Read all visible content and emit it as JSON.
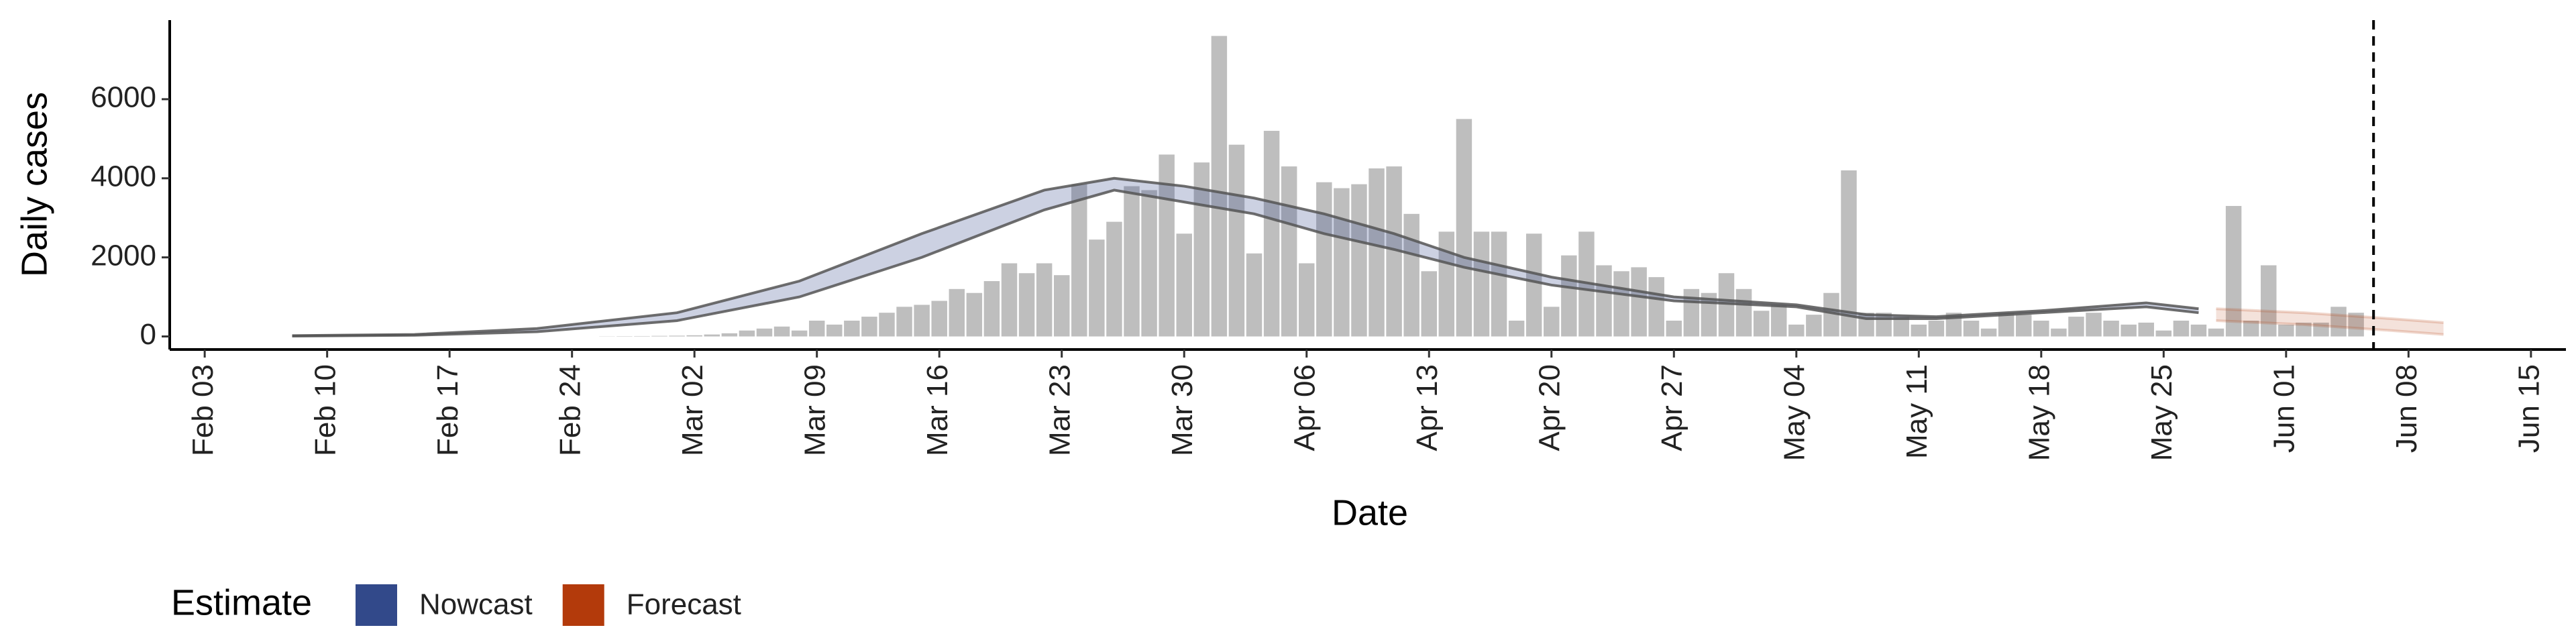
{
  "chart_data": {
    "type": "bar",
    "x_label": "Date",
    "y_label": "Daily cases",
    "color": "#bebebe",
    "x": [
      "Feb 26",
      "Feb 27",
      "Feb 28",
      "Feb 29",
      "Mar 01",
      "Mar 02",
      "Mar 03",
      "Mar 04",
      "Mar 05",
      "Mar 06",
      "Mar 07",
      "Mar 08",
      "Mar 09",
      "Mar 10",
      "Mar 11",
      "Mar 12",
      "Mar 13",
      "Mar 14",
      "Mar 15",
      "Mar 16",
      "Mar 17",
      "Mar 18",
      "Mar 19",
      "Mar 20",
      "Mar 21",
      "Mar 22",
      "Mar 23",
      "Mar 24",
      "Mar 25",
      "Mar 26",
      "Mar 27",
      "Mar 28",
      "Mar 29",
      "Mar 30",
      "Mar 31",
      "Apr 01",
      "Apr 02",
      "Apr 03",
      "Apr 04",
      "Apr 05",
      "Apr 06",
      "Apr 07",
      "Apr 08",
      "Apr 09",
      "Apr 10",
      "Apr 11",
      "Apr 12",
      "Apr 13",
      "Apr 14",
      "Apr 15",
      "Apr 16",
      "Apr 17",
      "Apr 18",
      "Apr 19",
      "Apr 20",
      "Apr 21",
      "Apr 22",
      "Apr 23",
      "Apr 24",
      "Apr 25",
      "Apr 26",
      "Apr 27",
      "Apr 28",
      "Apr 29",
      "Apr 30",
      "May 01",
      "May 02",
      "May 03",
      "May 04",
      "May 05",
      "May 06",
      "May 07",
      "May 08",
      "May 09",
      "May 10",
      "May 11",
      "May 12",
      "May 13",
      "May 14",
      "May 15",
      "May 16",
      "May 17",
      "May 18",
      "May 19",
      "May 20",
      "May 21",
      "May 22",
      "May 23",
      "May 24",
      "May 25",
      "May 26",
      "May 27",
      "May 28",
      "May 29",
      "May 30",
      "May 31",
      "Jun 01",
      "Jun 02",
      "Jun 03",
      "Jun 04",
      "Jun 05"
    ],
    "values": [
      5,
      8,
      10,
      15,
      20,
      30,
      50,
      80,
      150,
      200,
      250,
      150,
      400,
      300,
      400,
      500,
      600,
      750,
      800,
      900,
      1200,
      1100,
      1400,
      1850,
      1600,
      1850,
      1550,
      3850,
      2450,
      2900,
      3800,
      3700,
      4600,
      2600,
      4400,
      7600,
      4850,
      2100,
      5200,
      4300,
      1850,
      3900,
      3750,
      3850,
      4250,
      4300,
      3100,
      1650,
      2650,
      5500,
      2650,
      2650,
      400,
      2600,
      750,
      2050,
      2650,
      1800,
      1650,
      1750,
      1500,
      400,
      1200,
      1100,
      1600,
      1200,
      650,
      800,
      300,
      550,
      1100,
      4200,
      600,
      600,
      500,
      300,
      400,
      600,
      400,
      200,
      600,
      550,
      400,
      200,
      500,
      600,
      400,
      300,
      350,
      150,
      400,
      300,
      200,
      3300,
      400,
      1800,
      300,
      350,
      350,
      750,
      600
    ],
    "bands": [
      {
        "name": "Nowcast",
        "color": "#32498a",
        "x": [
          "Feb 08",
          "Feb 15",
          "Feb 22",
          "Mar 01",
          "Mar 08",
          "Mar 15",
          "Mar 22",
          "Mar 26",
          "Mar 30",
          "Apr 03",
          "Apr 07",
          "Apr 11",
          "Apr 15",
          "Apr 20",
          "Apr 27",
          "May 04",
          "May 08",
          "May 12",
          "May 18",
          "May 24",
          "May 27"
        ],
        "upper": [
          20,
          50,
          200,
          600,
          1400,
          2600,
          3700,
          4000,
          3800,
          3500,
          3100,
          2600,
          2000,
          1500,
          1000,
          800,
          550,
          500,
          650,
          850,
          700
        ],
        "lower": [
          10,
          30,
          120,
          400,
          1000,
          2000,
          3200,
          3700,
          3400,
          3100,
          2600,
          2200,
          1750,
          1300,
          900,
          750,
          450,
          450,
          600,
          750,
          600
        ]
      },
      {
        "name": "Forecast",
        "color": "#b33a0b",
        "x": [
          "May 28",
          "Jun 02",
          "Jun 07",
          "Jun 10"
        ],
        "upper": [
          700,
          600,
          450,
          350
        ],
        "lower": [
          400,
          300,
          150,
          50
        ]
      }
    ],
    "legend_title": "Estimate",
    "vline": "Jun 06",
    "xlim": [
      "Feb 01",
      "Jun 17"
    ],
    "xticks": [
      "Feb 03",
      "Feb 10",
      "Feb 17",
      "Feb 24",
      "Mar 02",
      "Mar 09",
      "Mar 16",
      "Mar 23",
      "Mar 30",
      "Apr 06",
      "Apr 13",
      "Apr 20",
      "Apr 27",
      "May 04",
      "May 11",
      "May 18",
      "May 25",
      "Jun 01",
      "Jun 08",
      "Jun 15"
    ],
    "ylim": [
      -330,
      8000
    ],
    "yticks": [
      0,
      2000,
      4000,
      6000
    ]
  }
}
